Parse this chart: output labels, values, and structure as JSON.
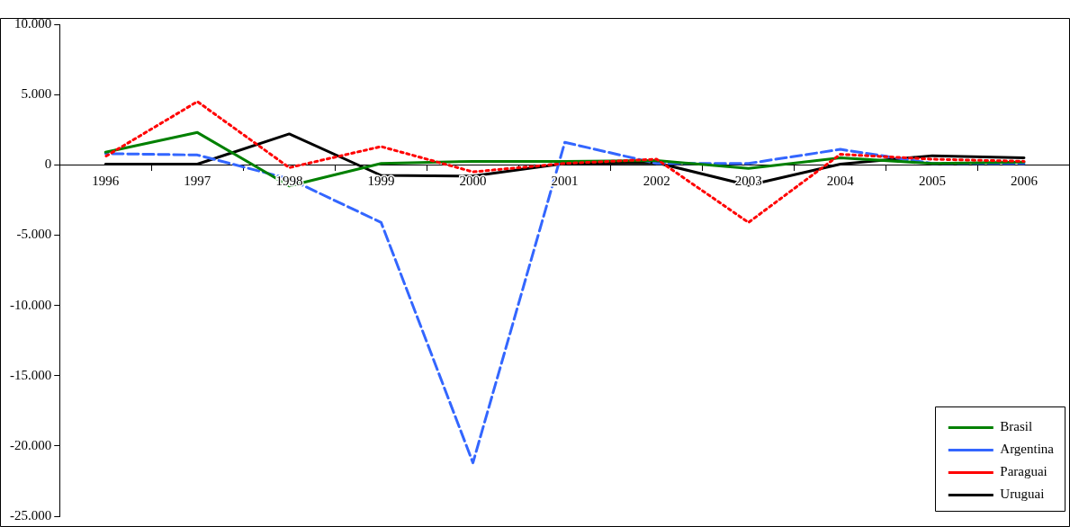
{
  "chart_data": {
    "type": "line",
    "categories": [
      "1996",
      "1997",
      "1998",
      "1999",
      "2000",
      "2001",
      "2002",
      "2003",
      "2004",
      "2005",
      "2006"
    ],
    "series": [
      {
        "name": "Brasil",
        "color": "#008000",
        "line_style": "solid",
        "values": [
          900,
          2300,
          -1500,
          100,
          250,
          250,
          300,
          -250,
          500,
          100,
          200
        ]
      },
      {
        "name": "Argentina",
        "color": "#3366ff",
        "line_style": "dashed",
        "values": [
          800,
          700,
          -1000,
          -4100,
          -21200,
          1600,
          100,
          100,
          1100,
          100,
          100
        ]
      },
      {
        "name": "Paraguai",
        "color": "#ff0000",
        "line_style": "dotted",
        "values": [
          600,
          4500,
          -200,
          1300,
          -500,
          100,
          400,
          -4100,
          750,
          400,
          250
        ]
      },
      {
        "name": "Uruguai",
        "color": "#000000",
        "line_style": "solid",
        "values": [
          50,
          50,
          2200,
          -750,
          -800,
          100,
          150,
          -1450,
          50,
          650,
          500
        ]
      }
    ],
    "ylim": [
      -25000,
      10000
    ],
    "yticks": [
      {
        "value": -25000,
        "label": "-25.000"
      },
      {
        "value": -20000,
        "label": "-20.000"
      },
      {
        "value": -15000,
        "label": "-15.000"
      },
      {
        "value": -10000,
        "label": "-10.000"
      },
      {
        "value": -5000,
        "label": "-5.000"
      },
      {
        "value": 0,
        "label": "0"
      },
      {
        "value": 5000,
        "label": "5.000"
      },
      {
        "value": 10000,
        "label": "10.000"
      }
    ],
    "grid": false,
    "legend": "bottom right",
    "marker": "none"
  }
}
